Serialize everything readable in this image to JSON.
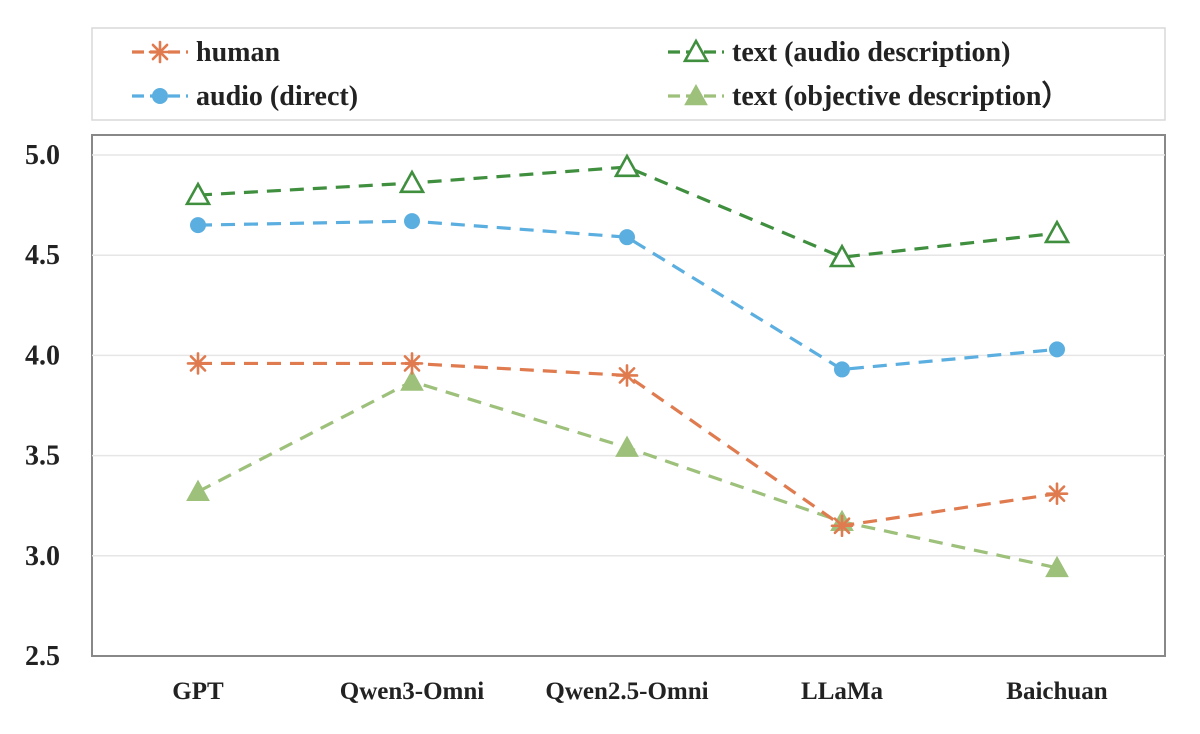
{
  "chart_data": {
    "type": "line",
    "categories": [
      "GPT",
      "Qwen3-Omni",
      "Qwen2.5-Omni",
      "LLaMa",
      "Baichuan"
    ],
    "ylim": [
      2.5,
      5.0
    ],
    "yticks": [
      "2.5",
      "3.0",
      "3.5",
      "4.0",
      "4.5",
      "5.0"
    ],
    "grid": true,
    "legend_position": "top",
    "series": [
      {
        "name": "human",
        "values": [
          3.96,
          3.96,
          3.9,
          3.15,
          3.31
        ],
        "color": "#E07B4F",
        "marker": "asterisk",
        "dash": true
      },
      {
        "name": "audio (direct)",
        "values": [
          4.65,
          4.67,
          4.59,
          3.93,
          4.03
        ],
        "color": "#5BAEE0",
        "marker": "circle",
        "dash": true
      },
      {
        "name": "text (audio description)",
        "values": [
          4.8,
          4.86,
          4.94,
          4.49,
          4.61
        ],
        "color": "#3F8F3F",
        "marker": "triangle-open",
        "dash": true
      },
      {
        "name": "text (objective description）",
        "values": [
          3.32,
          3.87,
          3.54,
          3.17,
          2.94
        ],
        "color": "#9DC07A",
        "marker": "triangle-filled",
        "dash": true
      }
    ]
  }
}
